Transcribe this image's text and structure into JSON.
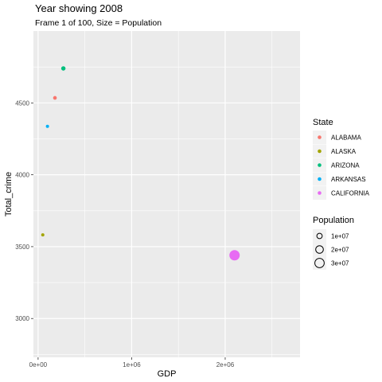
{
  "chart_data": {
    "type": "scatter",
    "title": "Year showing 2008",
    "subtitle": "Frame 1 of 100, Size = Population",
    "xlabel": "GDP",
    "ylabel": "Total_crime",
    "xlim": [
      -50000,
      2800000
    ],
    "ylim": [
      2730,
      5000
    ],
    "x_ticks": [
      0,
      1000000,
      2000000
    ],
    "x_tick_labels": [
      "0e+00",
      "1e+06",
      "2e+06"
    ],
    "y_ticks": [
      3000,
      3500,
      4000,
      4500
    ],
    "y_tick_labels": [
      "3000",
      "3500",
      "4000",
      "4500"
    ],
    "grid": true,
    "points": [
      {
        "state": "ALABAMA",
        "x": 180000,
        "y": 4535,
        "population": 4700000,
        "color": "#F8766D"
      },
      {
        "state": "ALASKA",
        "x": 50000,
        "y": 3582,
        "population": 690000,
        "color": "#A3A500"
      },
      {
        "state": "ARIZONA",
        "x": 270000,
        "y": 4740,
        "population": 6500000,
        "color": "#00BF7D"
      },
      {
        "state": "ARKANSAS",
        "x": 100000,
        "y": 4337,
        "population": 2900000,
        "color": "#00B0F6"
      },
      {
        "state": "CALIFORNIA",
        "x": 2100000,
        "y": 3440,
        "population": 36600000,
        "color": "#E76BF3"
      }
    ],
    "legend_color": {
      "title": "State",
      "position": "right",
      "entries": [
        {
          "label": "ALABAMA",
          "color": "#F8766D"
        },
        {
          "label": "ALASKA",
          "color": "#A3A500"
        },
        {
          "label": "ARIZONA",
          "color": "#00BF7D"
        },
        {
          "label": "ARKANSAS",
          "color": "#00B0F6"
        },
        {
          "label": "CALIFORNIA",
          "color": "#E76BF3"
        }
      ]
    },
    "legend_size": {
      "title": "Population",
      "position": "right",
      "entries": [
        {
          "label": "1e+07",
          "value": 10000000
        },
        {
          "label": "2e+07",
          "value": 20000000
        },
        {
          "label": "3e+07",
          "value": 30000000
        }
      ]
    }
  }
}
